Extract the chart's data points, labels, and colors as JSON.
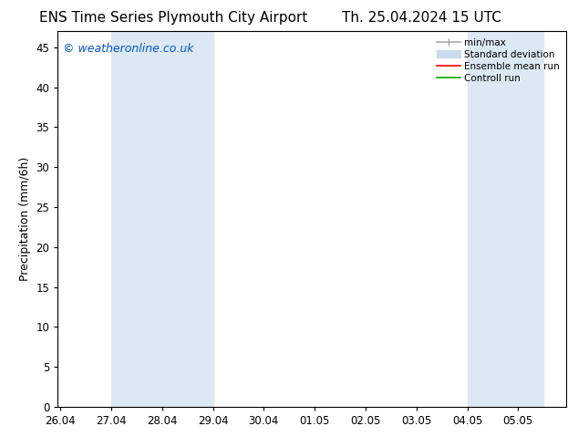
{
  "title_left": "ENS Time Series Plymouth City Airport",
  "title_right": "Th. 25.04.2024 15 UTC",
  "ylabel": "Precipitation (mm/6h)",
  "watermark": "© weatheronline.co.uk",
  "x_tick_labels": [
    "26.04",
    "27.04",
    "28.04",
    "29.04",
    "30.04",
    "01.05",
    "02.05",
    "03.05",
    "04.05",
    "05.05"
  ],
  "x_tick_positions": [
    0,
    1,
    2,
    3,
    4,
    5,
    6,
    7,
    8,
    9
  ],
  "ylim": [
    0,
    47
  ],
  "yticks": [
    0,
    5,
    10,
    15,
    20,
    25,
    30,
    35,
    40,
    45
  ],
  "bg_color": "#ffffff",
  "plot_bg_color": "#ffffff",
  "shaded_bands": [
    {
      "x_start": 1,
      "x_end": 3,
      "color": "#dce9f5"
    },
    {
      "x_start": 8,
      "x_end": 9.5,
      "color": "#dce9f5"
    }
  ],
  "legend_items": [
    {
      "label": "min/max",
      "color": "#aaaaaa",
      "lw": 1.2,
      "style": "minmax"
    },
    {
      "label": "Standard deviation",
      "color": "#c8dcee",
      "lw": 6,
      "style": "fill"
    },
    {
      "label": "Ensemble mean run",
      "color": "#ff0000",
      "lw": 1.2,
      "style": "line"
    },
    {
      "label": "Controll run",
      "color": "#00aa00",
      "lw": 1.2,
      "style": "line"
    }
  ],
  "title_fontsize": 11,
  "tick_label_fontsize": 8.5,
  "ylabel_fontsize": 9,
  "watermark_color": "#0055cc",
  "watermark_fontsize": 9,
  "x_min": -0.05,
  "x_max": 9.95
}
